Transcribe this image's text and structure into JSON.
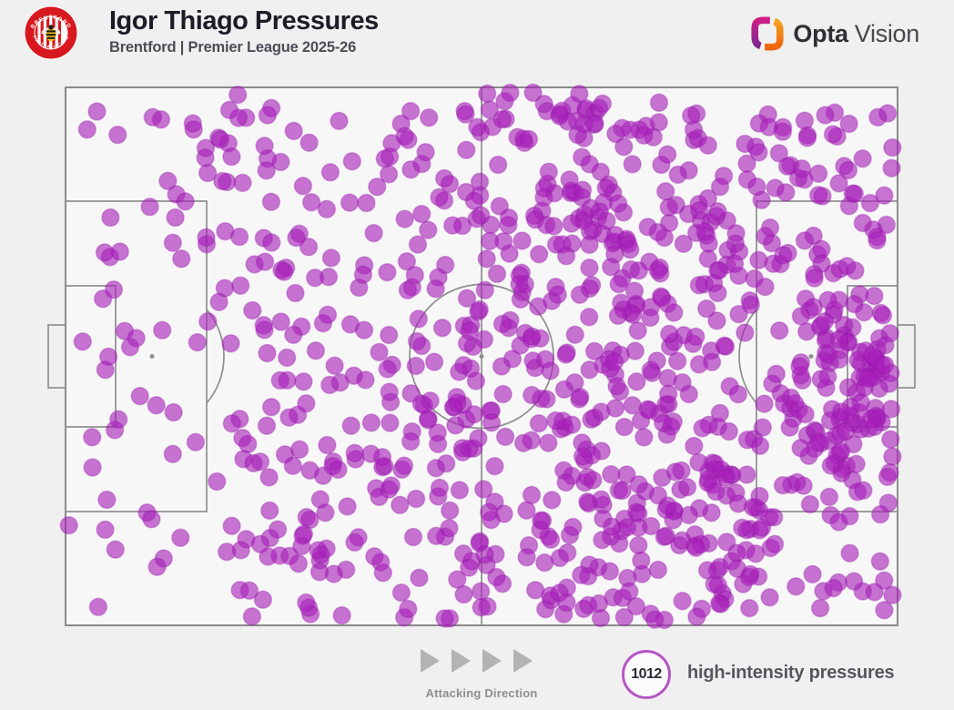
{
  "header": {
    "badge": {
      "club_name": "Brentford FC",
      "ring_top_text": "BRENTFORD",
      "ring_bottom_text": "FOOTBALL CLUB",
      "ring_color": "#d7191f"
    },
    "title": "Igor Thiago Pressures",
    "subtitle": "Brentford | Premier League 2025-26",
    "brand": {
      "bold": "Opta",
      "light": "Vision"
    }
  },
  "footer": {
    "attacking_direction_label": "Attacking Direction",
    "arrow_count": 4,
    "legend_value": "1012",
    "legend_label": "high-intensity pressures"
  },
  "chart_data": {
    "type": "scatter",
    "title": "Igor Thiago Pressures",
    "subtitle": "Brentford | Premier League 2025-26",
    "total_points": 1012,
    "x_range": [
      0,
      100
    ],
    "y_range": [
      0,
      100
    ],
    "attacking_direction": "left-to-right",
    "legend": {
      "value": 1012,
      "label": "high-intensity pressures",
      "position": "bottom-right"
    },
    "dot_color": "#a820ba",
    "dot_opacity": 0.62,
    "dot_radius_px": 9.5,
    "seed": 42,
    "density_clusters": [
      {
        "shape": "uniform",
        "x": [
          2,
          18
        ],
        "y": [
          3,
          97
        ],
        "n": 40
      },
      {
        "shape": "uniform",
        "x": [
          18,
          38
        ],
        "y": [
          1,
          99
        ],
        "n": 143
      },
      {
        "shape": "uniform",
        "x": [
          38,
          58
        ],
        "y": [
          1,
          99
        ],
        "n": 200
      },
      {
        "shape": "uniform",
        "x": [
          58,
          80
        ],
        "y": [
          1,
          99
        ],
        "n": 290
      },
      {
        "shape": "uniform",
        "x": [
          80,
          99.5
        ],
        "y": [
          2,
          98
        ],
        "n": 175
      },
      {
        "shape": "gauss",
        "cx": 94.5,
        "cy": 55,
        "sx": 4.5,
        "sy": 10,
        "n": 85
      },
      {
        "shape": "gauss",
        "cx": 68,
        "cy": 78,
        "sx": 9,
        "sy": 9,
        "n": 35
      },
      {
        "shape": "gauss",
        "cx": 63,
        "cy": 25,
        "sx": 9,
        "sy": 9,
        "n": 30
      }
    ],
    "sample_points": [
      [
        0.4,
        81.4
      ],
      [
        5.4,
        24.2
      ],
      [
        4.7,
        30.7
      ],
      [
        15.3,
        6.7
      ],
      [
        18.6,
        9.7
      ],
      [
        16.8,
        13.1
      ],
      [
        12.3,
        17.4
      ],
      [
        14.4,
        21.2
      ],
      [
        13.2,
        24.2
      ],
      [
        12.9,
        28.9
      ],
      [
        16.9,
        27.9
      ],
      [
        5.8,
        37.6
      ],
      [
        4.5,
        39.3
      ],
      [
        8.5,
        46.6
      ]
    ]
  }
}
